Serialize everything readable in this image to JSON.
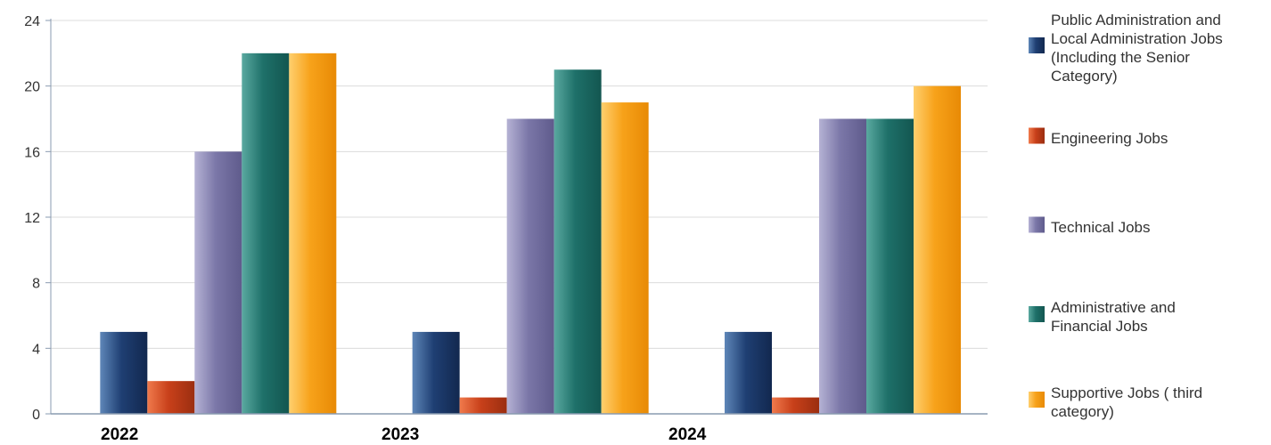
{
  "chart_data": {
    "type": "bar",
    "categories": [
      "2022",
      "2023",
      "2024"
    ],
    "ylim": [
      0,
      24
    ],
    "yticks": [
      0,
      4,
      8,
      12,
      16,
      20,
      24
    ],
    "grid": true,
    "legend_position": "right",
    "title": "",
    "xlabel": "",
    "ylabel": "",
    "series": [
      {
        "name": "Public Administration and Local Administration Jobs (Including the Senior Category)",
        "legend_lines": [
          "Public Administration and",
          "Local Administration Jobs",
          "(Including the Senior",
          "Category)"
        ],
        "values": [
          5,
          5,
          5
        ],
        "color": "#1f3f73",
        "color_light": "#5e86b8",
        "color_dark": "#12284f"
      },
      {
        "name": "Engineering Jobs",
        "legend_lines": [
          "Engineering Jobs"
        ],
        "values": [
          2,
          1,
          1
        ],
        "color": "#c8401a",
        "color_light": "#f07a4c",
        "color_dark": "#9b2e10"
      },
      {
        "name": "Technical Jobs",
        "legend_lines": [
          "Technical Jobs"
        ],
        "values": [
          16,
          18,
          18
        ],
        "color": "#7b77a8",
        "color_light": "#b5b2d4",
        "color_dark": "#5f5b8c"
      },
      {
        "name": "Administrative and Financial Jobs",
        "legend_lines": [
          "Administrative and",
          "Financial Jobs"
        ],
        "values": [
          22,
          21,
          18
        ],
        "color": "#1e7069",
        "color_light": "#5aa9a0",
        "color_dark": "#135650"
      },
      {
        "name": "Supportive Jobs ( third category)",
        "legend_lines": [
          "Supportive Jobs ( third",
          "category)"
        ],
        "values": [
          22,
          19,
          20
        ],
        "color": "#f7a21a",
        "color_light": "#ffcf6e",
        "color_dark": "#e88a05"
      }
    ]
  }
}
